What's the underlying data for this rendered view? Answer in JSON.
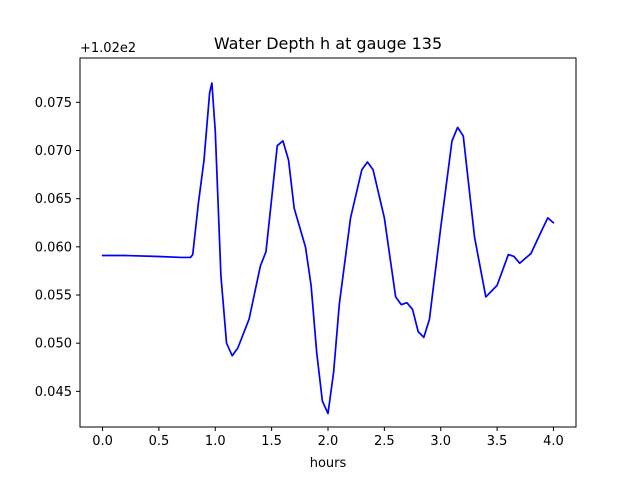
{
  "chart_data": {
    "type": "line",
    "title": "Water Depth h at gauge 135",
    "xlabel": "hours",
    "ylabel": "",
    "offset_label": "+1.02e2",
    "xlim": [
      -0.2,
      4.2
    ],
    "ylim": [
      0.0413,
      0.0796
    ],
    "xticks": [
      0.0,
      0.5,
      1.0,
      1.5,
      2.0,
      2.5,
      3.0,
      3.5,
      4.0
    ],
    "xtick_labels": [
      "0.0",
      "0.5",
      "1.0",
      "1.5",
      "2.0",
      "2.5",
      "3.0",
      "3.5",
      "4.0"
    ],
    "yticks": [
      0.045,
      0.05,
      0.055,
      0.06,
      0.065,
      0.07,
      0.075
    ],
    "ytick_labels": [
      "0.045",
      "0.050",
      "0.055",
      "0.060",
      "0.065",
      "0.070",
      "0.075"
    ],
    "grid": false,
    "series": [
      {
        "color": "#0000ff",
        "x": [
          0.0,
          0.2,
          0.5,
          0.7,
          0.78,
          0.8,
          0.85,
          0.9,
          0.95,
          0.97,
          1.0,
          1.05,
          1.1,
          1.15,
          1.2,
          1.3,
          1.4,
          1.45,
          1.5,
          1.55,
          1.6,
          1.65,
          1.7,
          1.8,
          1.85,
          1.9,
          1.95,
          2.0,
          2.05,
          2.1,
          2.2,
          2.3,
          2.35,
          2.4,
          2.5,
          2.6,
          2.65,
          2.7,
          2.75,
          2.8,
          2.85,
          2.9,
          3.0,
          3.1,
          3.15,
          3.2,
          3.3,
          3.4,
          3.5,
          3.6,
          3.65,
          3.7,
          3.8,
          3.9,
          3.95,
          4.0
        ],
        "y": [
          0.0591,
          0.0591,
          0.059,
          0.0589,
          0.0589,
          0.0592,
          0.0645,
          0.069,
          0.076,
          0.077,
          0.072,
          0.057,
          0.05,
          0.0487,
          0.0495,
          0.0525,
          0.058,
          0.0595,
          0.065,
          0.0705,
          0.071,
          0.069,
          0.064,
          0.06,
          0.056,
          0.049,
          0.044,
          0.0427,
          0.047,
          0.054,
          0.063,
          0.068,
          0.0688,
          0.068,
          0.063,
          0.0548,
          0.054,
          0.0542,
          0.0535,
          0.0512,
          0.0506,
          0.0525,
          0.062,
          0.071,
          0.0724,
          0.0715,
          0.061,
          0.0548,
          0.056,
          0.0592,
          0.059,
          0.0583,
          0.0593,
          0.0618,
          0.063,
          0.0625
        ]
      }
    ]
  }
}
